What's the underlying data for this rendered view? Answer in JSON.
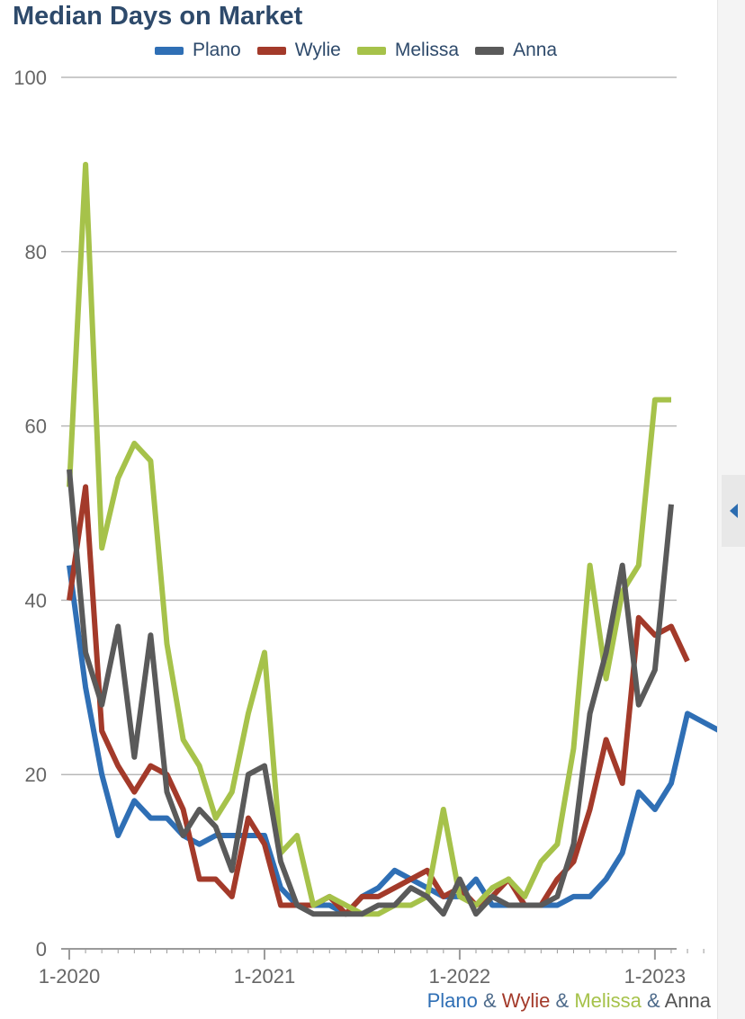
{
  "chart_data": {
    "type": "line",
    "title": "Median Days on Market",
    "ylim": [
      0,
      100
    ],
    "yticks": [
      0,
      20,
      40,
      60,
      80,
      100
    ],
    "xtick_labels": [
      "1-2020",
      "1-2021",
      "1-2022",
      "1-2023"
    ],
    "xtick_index": [
      0,
      12,
      24,
      36
    ],
    "grid": true,
    "legend_position": "top",
    "series": [
      {
        "name": "Plano",
        "color": "#2f6fb5",
        "values": [
          44,
          30,
          20,
          13,
          17,
          15,
          15,
          13,
          12,
          13,
          13,
          13,
          13,
          7,
          5,
          5,
          5,
          4,
          6,
          7,
          9,
          8,
          7,
          6,
          6,
          8,
          5,
          5,
          5,
          5,
          5,
          6,
          6,
          8,
          11,
          18,
          16,
          19,
          27,
          26,
          25
        ]
      },
      {
        "name": "Wylie",
        "color": "#a33a2a",
        "values": [
          40,
          53,
          25,
          21,
          18,
          21,
          20,
          16,
          8,
          8,
          6,
          15,
          12,
          5,
          5,
          5,
          6,
          4,
          6,
          6,
          7,
          8,
          9,
          6,
          7,
          5,
          6,
          8,
          5,
          5,
          8,
          10,
          16,
          24,
          19,
          38,
          36,
          37,
          33
        ]
      },
      {
        "name": "Melissa",
        "color": "#a6c24a",
        "values": [
          53,
          90,
          46,
          54,
          58,
          56,
          35,
          24,
          21,
          15,
          18,
          27,
          34,
          11,
          13,
          5,
          6,
          5,
          4,
          4,
          5,
          5,
          6,
          16,
          6,
          5,
          7,
          8,
          6,
          10,
          12,
          23,
          44,
          31,
          41,
          44,
          63,
          63
        ]
      },
      {
        "name": "Anna",
        "color": "#5a5a5a",
        "values": [
          55,
          34,
          28,
          37,
          22,
          36,
          18,
          13,
          16,
          14,
          9,
          20,
          21,
          10,
          5,
          4,
          4,
          4,
          4,
          5,
          5,
          7,
          6,
          4,
          8,
          4,
          6,
          5,
          5,
          5,
          6,
          12,
          27,
          34,
          44,
          28,
          32,
          51
        ]
      }
    ]
  },
  "footer_legend": {
    "plano": "Plano",
    "amp1": "&",
    "wylie": "Wylie",
    "amp2": "&",
    "melissa": "Melissa",
    "amp3": "&",
    "anna": "Anna"
  }
}
